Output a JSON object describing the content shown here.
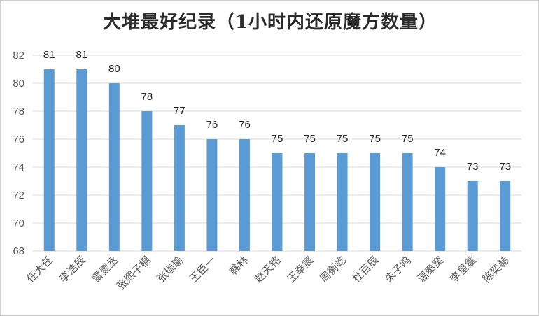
{
  "chart_data": {
    "type": "bar",
    "title": "大堆最好纪录（1小时内还原魔方数量）",
    "categories": [
      "任大任",
      "李浩辰",
      "雷壹丞",
      "张熙子桐",
      "张珈瑜",
      "王臣一",
      "韩林",
      "赵天铭",
      "王幸宸",
      "周衡屹",
      "杜百辰",
      "朱子鸣",
      "温泰奕",
      "李星震",
      "陈奕赫"
    ],
    "values": [
      81,
      81,
      80,
      78,
      77,
      76,
      76,
      75,
      75,
      75,
      75,
      75,
      74,
      73,
      73
    ],
    "ylim": [
      68,
      82
    ],
    "yticks": [
      68,
      70,
      72,
      74,
      76,
      78,
      80,
      82
    ],
    "grid": true,
    "data_labels": true,
    "bar_color": "#5b9bd5",
    "grid_color": "#d9d9d9"
  }
}
